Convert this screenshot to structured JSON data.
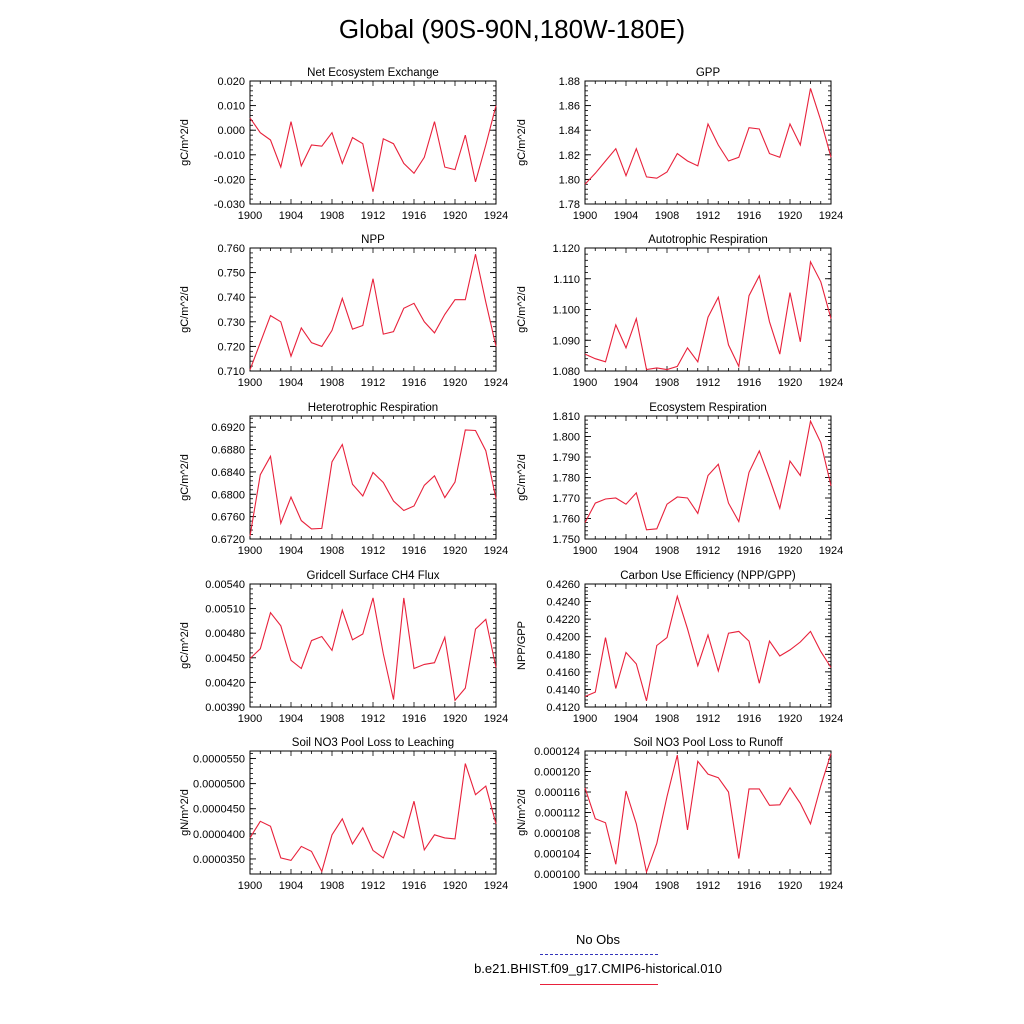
{
  "title": "Global (90S-90N,180W-180E)",
  "legend": {
    "obs_label": "No Obs",
    "obs_color": "#3333bb",
    "run_label": "b.e21.BHIST.f09_g17.CMIP6-historical.010",
    "run_color": "#e8213b"
  },
  "chart_data": [
    {
      "type": "line",
      "title": "Net Ecosystem Exchange",
      "ylabel": "gC/m^2/d",
      "xlim": [
        1900,
        1924
      ],
      "ylim": [
        -0.03,
        0.02
      ],
      "xticks": [
        "1900",
        "1904",
        "1908",
        "1912",
        "1916",
        "1920",
        "1924"
      ],
      "yticks": [
        "0.020",
        "0.010",
        "0.000",
        "-0.010",
        "-0.020",
        "-0.030"
      ],
      "ytick_values": [
        0.02,
        0.01,
        0.0,
        -0.01,
        -0.02,
        -0.03
      ],
      "x": [
        1900,
        1901,
        1902,
        1903,
        1904,
        1905,
        1906,
        1907,
        1908,
        1909,
        1910,
        1911,
        1912,
        1913,
        1914,
        1915,
        1916,
        1917,
        1918,
        1919,
        1920,
        1921,
        1922,
        1923,
        1924
      ],
      "y": [
        0.005,
        -0.001,
        -0.004,
        -0.015,
        0.0035,
        -0.0145,
        -0.006,
        -0.0065,
        -0.001,
        -0.0135,
        -0.003,
        -0.0055,
        -0.025,
        -0.0035,
        -0.0055,
        -0.0135,
        -0.0175,
        -0.011,
        0.0035,
        -0.015,
        -0.016,
        -0.002,
        -0.021,
        -0.006,
        0.01
      ]
    },
    {
      "type": "line",
      "title": "GPP",
      "ylabel": "gC/m^2/d",
      "xlim": [
        1900,
        1924
      ],
      "ylim": [
        1.78,
        1.88
      ],
      "xticks": [
        "1900",
        "1904",
        "1908",
        "1912",
        "1916",
        "1920",
        "1924"
      ],
      "yticks": [
        "1.88",
        "1.86",
        "1.84",
        "1.82",
        "1.80",
        "1.78"
      ],
      "ytick_values": [
        1.88,
        1.86,
        1.84,
        1.82,
        1.8,
        1.78
      ],
      "x": [
        1900,
        1901,
        1902,
        1903,
        1904,
        1905,
        1906,
        1907,
        1908,
        1909,
        1910,
        1911,
        1912,
        1913,
        1914,
        1915,
        1916,
        1917,
        1918,
        1919,
        1920,
        1921,
        1922,
        1923,
        1924
      ],
      "y": [
        1.796,
        1.805,
        1.815,
        1.825,
        1.803,
        1.825,
        1.802,
        1.801,
        1.806,
        1.821,
        1.815,
        1.811,
        1.845,
        1.828,
        1.815,
        1.818,
        1.842,
        1.841,
        1.821,
        1.818,
        1.845,
        1.828,
        1.874,
        1.848,
        1.818
      ]
    },
    {
      "type": "line",
      "title": "NPP",
      "ylabel": "gC/m^2/d",
      "xlim": [
        1900,
        1924
      ],
      "ylim": [
        0.71,
        0.76
      ],
      "xticks": [
        "1900",
        "1904",
        "1908",
        "1912",
        "1916",
        "1920",
        "1924"
      ],
      "yticks": [
        "0.760",
        "0.750",
        "0.740",
        "0.730",
        "0.720",
        "0.710"
      ],
      "ytick_values": [
        0.76,
        0.75,
        0.74,
        0.73,
        0.72,
        0.71
      ],
      "x": [
        1900,
        1901,
        1902,
        1903,
        1904,
        1905,
        1906,
        1907,
        1908,
        1909,
        1910,
        1911,
        1912,
        1913,
        1914,
        1915,
        1916,
        1917,
        1918,
        1919,
        1920,
        1921,
        1922,
        1923,
        1924
      ],
      "y": [
        0.7105,
        0.7215,
        0.7325,
        0.73,
        0.716,
        0.7275,
        0.7215,
        0.72,
        0.7265,
        0.7395,
        0.727,
        0.7285,
        0.7475,
        0.725,
        0.726,
        0.7355,
        0.7375,
        0.73,
        0.7255,
        0.733,
        0.739,
        0.739,
        0.7575,
        0.738,
        0.72
      ]
    },
    {
      "type": "line",
      "title": "Autotrophic Respiration",
      "ylabel": "gC/m^2/d",
      "xlim": [
        1900,
        1924
      ],
      "ylim": [
        1.08,
        1.12
      ],
      "xticks": [
        "1900",
        "1904",
        "1908",
        "1912",
        "1916",
        "1920",
        "1924"
      ],
      "yticks": [
        "1.120",
        "1.110",
        "1.100",
        "1.090",
        "1.080"
      ],
      "ytick_values": [
        1.12,
        1.11,
        1.1,
        1.09,
        1.08
      ],
      "x": [
        1900,
        1901,
        1902,
        1903,
        1904,
        1905,
        1906,
        1907,
        1908,
        1909,
        1910,
        1911,
        1912,
        1913,
        1914,
        1915,
        1916,
        1917,
        1918,
        1919,
        1920,
        1921,
        1922,
        1923,
        1924
      ],
      "y": [
        1.0855,
        1.084,
        1.083,
        1.095,
        1.0875,
        1.097,
        1.0805,
        1.081,
        1.0805,
        1.0815,
        1.0875,
        1.083,
        1.0975,
        1.104,
        1.0885,
        1.0815,
        1.1045,
        1.111,
        1.096,
        1.0855,
        1.1055,
        1.0895,
        1.1155,
        1.109,
        1.097
      ]
    },
    {
      "type": "line",
      "title": "Heterotrophic Respiration",
      "ylabel": "gC/m^2/d",
      "xlim": [
        1900,
        1924
      ],
      "ylim": [
        0.672,
        0.694
      ],
      "xticks": [
        "1900",
        "1904",
        "1908",
        "1912",
        "1916",
        "1920",
        "1924"
      ],
      "yticks": [
        "0.6920",
        "0.6880",
        "0.6840",
        "0.6800",
        "0.6760",
        "0.6720"
      ],
      "ytick_values": [
        0.692,
        0.688,
        0.684,
        0.68,
        0.676,
        0.672
      ],
      "x": [
        1900,
        1901,
        1902,
        1903,
        1904,
        1905,
        1906,
        1907,
        1908,
        1909,
        1910,
        1911,
        1912,
        1913,
        1914,
        1915,
        1916,
        1917,
        1918,
        1919,
        1920,
        1921,
        1922,
        1923,
        1924
      ],
      "y": [
        0.6725,
        0.6835,
        0.6868,
        0.6748,
        0.6795,
        0.6753,
        0.6738,
        0.6739,
        0.6858,
        0.6889,
        0.6818,
        0.6797,
        0.6839,
        0.6821,
        0.6788,
        0.6771,
        0.6779,
        0.6816,
        0.6833,
        0.6794,
        0.6822,
        0.6915,
        0.6914,
        0.6878,
        0.6792
      ]
    },
    {
      "type": "line",
      "title": "Ecosystem Respiration",
      "ylabel": "gC/m^2/d",
      "xlim": [
        1900,
        1924
      ],
      "ylim": [
        1.75,
        1.81
      ],
      "xticks": [
        "1900",
        "1904",
        "1908",
        "1912",
        "1916",
        "1920",
        "1924"
      ],
      "yticks": [
        "1.810",
        "1.800",
        "1.790",
        "1.780",
        "1.770",
        "1.760",
        "1.750"
      ],
      "ytick_values": [
        1.81,
        1.8,
        1.79,
        1.78,
        1.77,
        1.76,
        1.75
      ],
      "x": [
        1900,
        1901,
        1902,
        1903,
        1904,
        1905,
        1906,
        1907,
        1908,
        1909,
        1910,
        1911,
        1912,
        1913,
        1914,
        1915,
        1916,
        1917,
        1918,
        1919,
        1920,
        1921,
        1922,
        1923,
        1924
      ],
      "y": [
        1.758,
        1.7675,
        1.7695,
        1.77,
        1.767,
        1.7725,
        1.7545,
        1.755,
        1.767,
        1.7705,
        1.77,
        1.7625,
        1.781,
        1.7865,
        1.7675,
        1.7585,
        1.7825,
        1.793,
        1.7795,
        1.765,
        1.788,
        1.781,
        1.8075,
        1.797,
        1.776
      ]
    },
    {
      "type": "line",
      "title": "Gridcell Surface CH4 Flux",
      "ylabel": "gC/m^2/d",
      "xlim": [
        1900,
        1924
      ],
      "ylim": [
        0.0039,
        0.0054
      ],
      "xticks": [
        "1900",
        "1904",
        "1908",
        "1912",
        "1916",
        "1920",
        "1924"
      ],
      "yticks": [
        "0.00540",
        "0.00510",
        "0.00480",
        "0.00450",
        "0.00420",
        "0.00390"
      ],
      "ytick_values": [
        0.0054,
        0.0051,
        0.0048,
        0.0045,
        0.0042,
        0.0039
      ],
      "x": [
        1900,
        1901,
        1902,
        1903,
        1904,
        1905,
        1906,
        1907,
        1908,
        1909,
        1910,
        1911,
        1912,
        1913,
        1914,
        1915,
        1916,
        1917,
        1918,
        1919,
        1920,
        1921,
        1922,
        1923,
        1924
      ],
      "y": [
        0.00449,
        0.00461,
        0.00505,
        0.00489,
        0.00447,
        0.00437,
        0.00471,
        0.00476,
        0.00459,
        0.00508,
        0.00472,
        0.00479,
        0.00523,
        0.00455,
        0.00399,
        0.00523,
        0.00437,
        0.00442,
        0.00444,
        0.00475,
        0.00398,
        0.00413,
        0.00485,
        0.00497,
        0.00438
      ]
    },
    {
      "type": "line",
      "title": "Carbon Use Efficiency (NPP/GPP)",
      "ylabel": "NPP/GPP",
      "xlim": [
        1900,
        1924
      ],
      "ylim": [
        0.412,
        0.426
      ],
      "xticks": [
        "1900",
        "1904",
        "1908",
        "1912",
        "1916",
        "1920",
        "1924"
      ],
      "yticks": [
        "0.4260",
        "0.4240",
        "0.4220",
        "0.4200",
        "0.4180",
        "0.4160",
        "0.4140",
        "0.4120"
      ],
      "ytick_values": [
        0.426,
        0.424,
        0.422,
        0.42,
        0.418,
        0.416,
        0.414,
        0.412
      ],
      "x": [
        1900,
        1901,
        1902,
        1903,
        1904,
        1905,
        1906,
        1907,
        1908,
        1909,
        1910,
        1911,
        1912,
        1913,
        1914,
        1915,
        1916,
        1917,
        1918,
        1919,
        1920,
        1921,
        1922,
        1923,
        1924
      ],
      "y": [
        0.4132,
        0.4137,
        0.4199,
        0.4141,
        0.4182,
        0.4169,
        0.4127,
        0.419,
        0.4199,
        0.4246,
        0.4209,
        0.4167,
        0.4202,
        0.4161,
        0.4204,
        0.4206,
        0.4195,
        0.4147,
        0.4195,
        0.4178,
        0.4185,
        0.4194,
        0.4206,
        0.4183,
        0.4165
      ]
    },
    {
      "type": "line",
      "title": "Soil NO3 Pool Loss to Leaching",
      "ylabel": "gN/m^2/d",
      "xlim": [
        1900,
        1924
      ],
      "ylim": [
        3.2e-05,
        5.65e-05
      ],
      "xticks": [
        "1900",
        "1904",
        "1908",
        "1912",
        "1916",
        "1920",
        "1924"
      ],
      "yticks": [
        "0.0000550",
        "0.0000500",
        "0.0000450",
        "0.0000400",
        "0.0000350"
      ],
      "ytick_values": [
        5.5e-05,
        5e-05,
        4.5e-05,
        4e-05,
        3.5e-05
      ],
      "x": [
        1900,
        1901,
        1902,
        1903,
        1904,
        1905,
        1906,
        1907,
        1908,
        1909,
        1910,
        1911,
        1912,
        1913,
        1914,
        1915,
        1916,
        1917,
        1918,
        1919,
        1920,
        1921,
        1922,
        1923,
        1924
      ],
      "y": [
        3.92e-05,
        4.25e-05,
        4.15e-05,
        3.52e-05,
        3.47e-05,
        3.75e-05,
        3.65e-05,
        3.25e-05,
        3.98e-05,
        4.3e-05,
        3.8e-05,
        4.12e-05,
        3.67e-05,
        3.52e-05,
        4.05e-05,
        3.92e-05,
        4.65e-05,
        3.68e-05,
        3.98e-05,
        3.92e-05,
        3.9e-05,
        5.4e-05,
        4.78e-05,
        4.95e-05,
        4.2e-05
      ]
    },
    {
      "type": "line",
      "title": "Soil NO3 Pool Loss to Runoff",
      "ylabel": "gN/m^2/d",
      "xlim": [
        1900,
        1924
      ],
      "ylim": [
        0.0001,
        0.000124
      ],
      "xticks": [
        "1900",
        "1904",
        "1908",
        "1912",
        "1916",
        "1920",
        "1924"
      ],
      "yticks": [
        "0.000124",
        "0.000120",
        "0.000116",
        "0.000112",
        "0.000108",
        "0.000104",
        "0.000100"
      ],
      "ytick_values": [
        0.000124,
        0.00012,
        0.000116,
        0.000112,
        0.000108,
        0.000104,
        0.0001
      ],
      "x": [
        1900,
        1901,
        1902,
        1903,
        1904,
        1905,
        1906,
        1907,
        1908,
        1909,
        1910,
        1911,
        1912,
        1913,
        1914,
        1915,
        1916,
        1917,
        1918,
        1919,
        1920,
        1921,
        1922,
        1923,
        1924
      ],
      "y": [
        0.0001168,
        0.0001108,
        0.00011,
        0.0001019,
        0.0001162,
        0.0001098,
        0.0001004,
        0.000106,
        0.0001151,
        0.0001232,
        0.0001086,
        0.000122,
        0.0001195,
        0.0001188,
        0.000116,
        0.000103,
        0.0001166,
        0.0001166,
        0.0001134,
        0.0001135,
        0.0001168,
        0.0001138,
        0.0001098,
        0.0001172,
        0.0001235
      ]
    }
  ]
}
